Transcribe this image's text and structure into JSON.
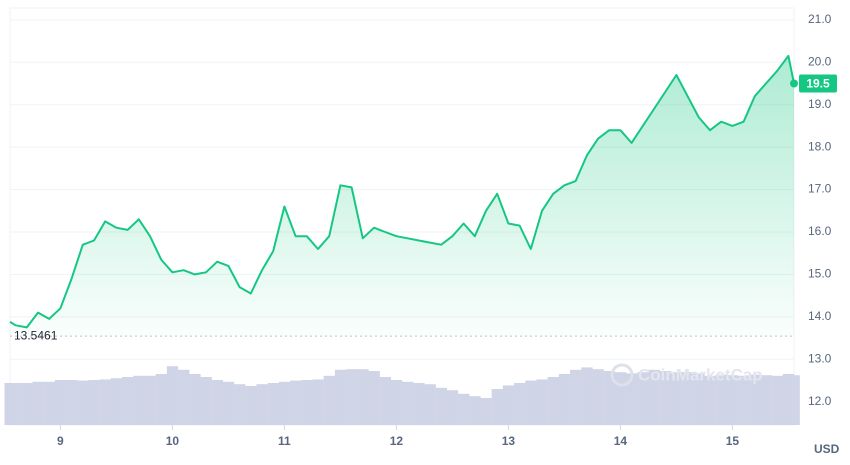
{
  "chart_data": {
    "type": "line",
    "x": [
      8.55,
      8.6,
      8.7,
      8.8,
      8.9,
      9.0,
      9.1,
      9.2,
      9.3,
      9.4,
      9.5,
      9.6,
      9.7,
      9.8,
      9.9,
      10.0,
      10.1,
      10.2,
      10.3,
      10.4,
      10.5,
      10.6,
      10.7,
      10.8,
      10.9,
      11.0,
      11.1,
      11.2,
      11.3,
      11.4,
      11.5,
      11.6,
      11.7,
      11.8,
      11.9,
      12.0,
      12.1,
      12.2,
      12.3,
      12.4,
      12.5,
      12.6,
      12.7,
      12.8,
      12.9,
      13.0,
      13.1,
      13.2,
      13.3,
      13.4,
      13.5,
      13.6,
      13.7,
      13.8,
      13.9,
      14.0,
      14.1,
      14.2,
      14.3,
      14.4,
      14.5,
      14.6,
      14.7,
      14.8,
      14.9,
      15.0,
      15.1,
      15.2,
      15.3,
      15.4,
      15.5,
      15.55
    ],
    "values": [
      13.88,
      13.8,
      13.75,
      14.1,
      13.95,
      14.2,
      14.9,
      15.7,
      15.8,
      16.25,
      16.1,
      16.05,
      16.3,
      15.9,
      15.35,
      15.05,
      15.1,
      15.0,
      15.05,
      15.3,
      15.2,
      14.7,
      14.55,
      15.1,
      15.55,
      16.6,
      15.9,
      15.9,
      15.6,
      15.9,
      17.1,
      17.05,
      15.85,
      16.1,
      16.0,
      15.9,
      15.85,
      15.8,
      15.75,
      15.7,
      15.9,
      16.2,
      15.9,
      16.5,
      16.9,
      16.2,
      16.15,
      15.6,
      16.5,
      16.9,
      17.1,
      17.2,
      17.8,
      18.2,
      18.4,
      18.4,
      18.1,
      18.5,
      18.9,
      19.3,
      19.7,
      19.2,
      18.7,
      18.4,
      18.6,
      18.5,
      18.6,
      19.2,
      19.5,
      19.8,
      20.15,
      19.5
    ],
    "volume": [
      70,
      70,
      70,
      72,
      72,
      75,
      75,
      74,
      75,
      76,
      78,
      80,
      82,
      82,
      85,
      98,
      92,
      85,
      80,
      75,
      72,
      68,
      65,
      68,
      70,
      72,
      74,
      75,
      76,
      82,
      92,
      93,
      93,
      90,
      80,
      75,
      72,
      70,
      68,
      62,
      58,
      52,
      48,
      45,
      60,
      66,
      70,
      74,
      76,
      80,
      85,
      92,
      96,
      93,
      90,
      88,
      86,
      88,
      92,
      90,
      88,
      88,
      86,
      82,
      84,
      83,
      82,
      84,
      83,
      82,
      85,
      83
    ],
    "volume_lim": [
      0,
      100
    ],
    "color": "#16c784",
    "volume_color": "#cfd4e6",
    "xlim": [
      8.55,
      15.55
    ],
    "xticks": [
      9,
      10,
      11,
      12,
      13,
      14,
      15
    ],
    "ylim": [
      11.45,
      21.28
    ],
    "yticks": [
      {
        "value": 12,
        "label": "12.0"
      },
      {
        "value": 13,
        "label": "13.0"
      },
      {
        "value": 14,
        "label": "14.0"
      },
      {
        "value": 15,
        "label": "15.0"
      },
      {
        "value": 16,
        "label": "16.0"
      },
      {
        "value": 17,
        "label": "17.0"
      },
      {
        "value": 18,
        "label": "18.0"
      },
      {
        "value": 19,
        "label": "19.0"
      },
      {
        "value": 20,
        "label": "20.0"
      },
      {
        "value": 21,
        "label": "21.0"
      }
    ],
    "grid": true,
    "baseline": 13.5461,
    "current_price": 19.5,
    "currency": "USD",
    "watermark": "CoinMarketCap"
  }
}
